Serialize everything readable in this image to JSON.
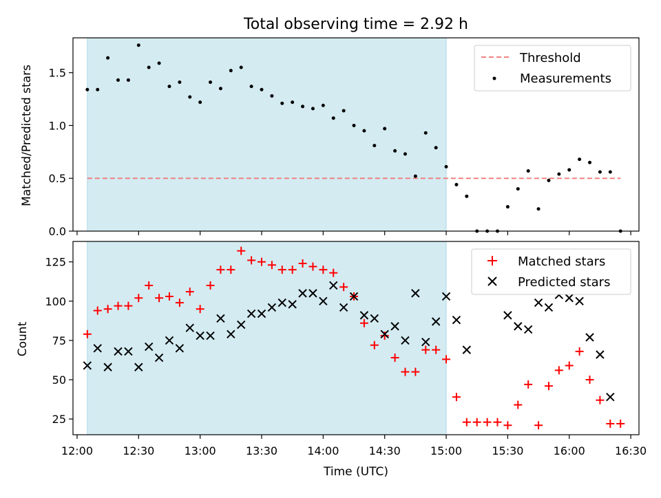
{
  "chart_data": [
    {
      "type": "scatter",
      "title": "Total observing time = 2.92 h",
      "ylabel": "Matched/Predicted stars",
      "xlabel": "",
      "xlim": [
        "11:58",
        "16:34"
      ],
      "ylim": [
        0,
        1.83
      ],
      "yticks": [
        0.0,
        0.5,
        1.0,
        1.5
      ],
      "ytick_labels": [
        "0.0",
        "0.5",
        "1.0",
        "1.5"
      ],
      "shaded_interval": {
        "start": "12:05",
        "end": "15:00",
        "color": "#d4ebf2"
      },
      "grid": false,
      "legend_position": "top-right",
      "series": [
        {
          "name": "Threshold",
          "kind": "line",
          "style": "dashed",
          "color": "#f08080",
          "x": [
            "12:05",
            "16:25"
          ],
          "y": [
            0.5,
            0.5
          ]
        },
        {
          "name": "Measurements",
          "kind": "scatter",
          "marker": "dot",
          "color": "#000000",
          "x": [
            "12:05",
            "12:10",
            "12:15",
            "12:20",
            "12:25",
            "12:30",
            "12:35",
            "12:40",
            "12:45",
            "12:50",
            "12:55",
            "13:00",
            "13:05",
            "13:10",
            "13:15",
            "13:20",
            "13:25",
            "13:30",
            "13:35",
            "13:40",
            "13:45",
            "13:50",
            "13:55",
            "14:00",
            "14:05",
            "14:10",
            "14:15",
            "14:20",
            "14:25",
            "14:30",
            "14:35",
            "14:40",
            "14:45",
            "14:50",
            "14:55",
            "15:00",
            "15:05",
            "15:10",
            "15:15",
            "15:20",
            "15:25",
            "15:30",
            "15:35",
            "15:40",
            "15:45",
            "15:50",
            "15:55",
            "16:00",
            "16:05",
            "16:10",
            "16:15",
            "16:20",
            "16:25"
          ],
          "y": [
            1.34,
            1.34,
            1.64,
            1.43,
            1.43,
            1.76,
            1.55,
            1.59,
            1.37,
            1.41,
            1.27,
            1.22,
            1.41,
            1.35,
            1.52,
            1.55,
            1.37,
            1.34,
            1.28,
            1.21,
            1.22,
            1.18,
            1.16,
            1.19,
            1.07,
            1.14,
            1.0,
            0.95,
            0.81,
            0.97,
            0.76,
            0.73,
            0.52,
            0.93,
            0.79,
            0.61,
            0.44,
            0.33,
            0.0,
            0.0,
            0.0,
            0.23,
            0.4,
            0.57,
            0.21,
            0.48,
            0.54,
            0.58,
            0.68,
            0.65,
            0.56,
            0.56,
            0.0
          ]
        }
      ]
    },
    {
      "type": "scatter",
      "title": "",
      "ylabel": "Count",
      "xlabel": "Time (UTC)",
      "xlim": [
        "11:58",
        "16:34"
      ],
      "ylim": [
        15,
        138
      ],
      "yticks": [
        25,
        50,
        75,
        100,
        125
      ],
      "ytick_labels": [
        "25",
        "50",
        "75",
        "100",
        "125"
      ],
      "xticks": [
        "12:00",
        "12:30",
        "13:00",
        "13:30",
        "14:00",
        "14:30",
        "15:00",
        "15:30",
        "16:00",
        "16:30"
      ],
      "shaded_interval": {
        "start": "12:05",
        "end": "15:00",
        "color": "#d4ebf2"
      },
      "grid": false,
      "legend_position": "top-right",
      "series": [
        {
          "name": "Matched stars",
          "kind": "scatter",
          "marker": "plus",
          "color": "#ff0000",
          "x": [
            "12:05",
            "12:10",
            "12:15",
            "12:20",
            "12:25",
            "12:30",
            "12:35",
            "12:40",
            "12:45",
            "12:50",
            "12:55",
            "13:00",
            "13:05",
            "13:10",
            "13:15",
            "13:20",
            "13:25",
            "13:30",
            "13:35",
            "13:40",
            "13:45",
            "13:50",
            "13:55",
            "14:00",
            "14:05",
            "14:10",
            "14:15",
            "14:20",
            "14:25",
            "14:30",
            "14:35",
            "14:40",
            "14:45",
            "14:50",
            "14:55",
            "15:00",
            "15:05",
            "15:10",
            "15:15",
            "15:20",
            "15:25",
            "15:30",
            "15:35",
            "15:40",
            "15:45",
            "15:50",
            "15:55",
            "16:00",
            "16:05",
            "16:10",
            "16:15",
            "16:20",
            "16:25"
          ],
          "y": [
            79,
            94,
            95,
            97,
            97,
            102,
            110,
            102,
            103,
            99,
            106,
            95,
            110,
            120,
            120,
            132,
            126,
            125,
            123,
            120,
            120,
            124,
            122,
            120,
            118,
            109,
            103,
            86,
            72,
            78,
            64,
            55,
            55,
            69,
            69,
            63,
            39,
            23,
            23,
            23,
            23,
            21,
            34,
            47,
            21,
            46,
            56,
            59,
            68,
            50,
            37,
            22,
            22
          ]
        },
        {
          "name": "Predicted stars",
          "kind": "scatter",
          "marker": "x",
          "color": "#000000",
          "x": [
            "12:05",
            "12:10",
            "12:15",
            "12:20",
            "12:25",
            "12:30",
            "12:35",
            "12:40",
            "12:45",
            "12:50",
            "12:55",
            "13:00",
            "13:05",
            "13:10",
            "13:15",
            "13:20",
            "13:25",
            "13:30",
            "13:35",
            "13:40",
            "13:45",
            "13:50",
            "13:55",
            "14:00",
            "14:05",
            "14:10",
            "14:15",
            "14:20",
            "14:25",
            "14:30",
            "14:35",
            "14:40",
            "14:45",
            "14:50",
            "14:55",
            "15:00",
            "15:05",
            "15:10",
            "15:30",
            "15:35",
            "15:40",
            "15:45",
            "15:50",
            "15:55",
            "16:00",
            "16:05",
            "16:10",
            "16:15",
            "16:20"
          ],
          "y": [
            59,
            70,
            58,
            68,
            68,
            58,
            71,
            64,
            75,
            70,
            83,
            78,
            78,
            89,
            79,
            85,
            92,
            92,
            96,
            99,
            98,
            105,
            105,
            100,
            110,
            96,
            103,
            91,
            89,
            79,
            84,
            75,
            105,
            74,
            87,
            103,
            88,
            69,
            91,
            84,
            82,
            99,
            96,
            104,
            102,
            100,
            77,
            66,
            39
          ]
        }
      ]
    }
  ]
}
